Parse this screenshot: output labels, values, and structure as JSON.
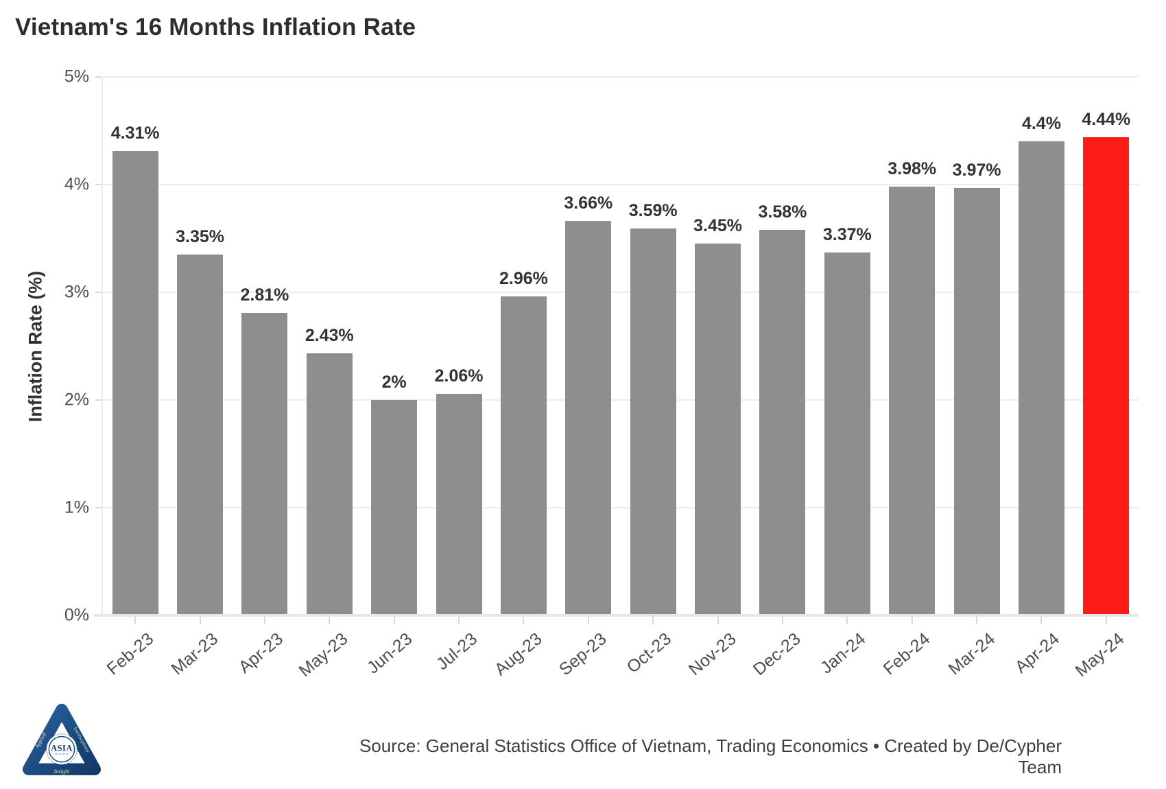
{
  "chart_data": {
    "type": "bar",
    "title": "Vietnam's 16 Months Inflation Rate",
    "ylabel": "Inflation Rate (%)",
    "categories": [
      "Feb-23",
      "Mar-23",
      "Apr-23",
      "May-23",
      "Jun-23",
      "Jul-23",
      "Aug-23",
      "Sep-23",
      "Oct-23",
      "Nov-23",
      "Dec-23",
      "Jan-24",
      "Feb-24",
      "Mar-24",
      "Apr-24",
      "May-24"
    ],
    "values": [
      4.31,
      3.35,
      2.81,
      2.43,
      2.0,
      2.06,
      2.96,
      3.66,
      3.59,
      3.45,
      3.58,
      3.37,
      3.98,
      3.97,
      4.4,
      4.44
    ],
    "bar_labels": [
      "4.31%",
      "3.35%",
      "2.81%",
      "2.43%",
      "2%",
      "2.06%",
      "2.96%",
      "3.66%",
      "3.59%",
      "3.45%",
      "3.58%",
      "3.37%",
      "3.98%",
      "3.97%",
      "4.4%",
      "4.44%"
    ],
    "yticks": [
      "0%",
      "1%",
      "2%",
      "3%",
      "4%",
      "5%"
    ],
    "ylim": [
      0,
      5
    ],
    "grid": true,
    "legend_position": "none",
    "bar_color": "#8e8e8e",
    "highlight_color": "#fc1c18",
    "highlight_index": 15
  },
  "footer": {
    "source": "Source: General Statistics Office of Vietnam, Trading Economics • Created by De/Cypher Team",
    "logo": {
      "center": "ASIA",
      "word_left": "Applied",
      "word_right": "Interdisciplinary",
      "word_bottom": "Insight"
    }
  }
}
